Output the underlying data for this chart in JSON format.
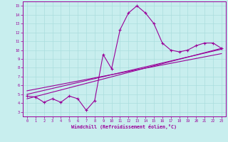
{
  "xlabel": "Windchill (Refroidissement éolien,°C)",
  "bg_color": "#c8eeee",
  "line_color": "#990099",
  "grid_color": "#aadddd",
  "x_ticks": [
    0,
    1,
    2,
    3,
    4,
    5,
    6,
    7,
    8,
    9,
    10,
    11,
    12,
    13,
    14,
    15,
    16,
    17,
    18,
    19,
    20,
    21,
    22,
    23
  ],
  "y_ticks": [
    3,
    4,
    5,
    6,
    7,
    8,
    9,
    10,
    11,
    12,
    13,
    14,
    15
  ],
  "ylim": [
    2.5,
    15.5
  ],
  "xlim": [
    -0.5,
    23.5
  ],
  "curve_x": [
    0,
    1,
    2,
    3,
    4,
    5,
    6,
    7,
    8,
    9,
    10,
    11,
    12,
    13,
    14,
    15,
    16,
    17,
    18,
    19,
    20,
    21,
    22,
    23
  ],
  "curve_y": [
    4.8,
    4.7,
    4.1,
    4.5,
    4.1,
    4.8,
    4.5,
    3.2,
    4.3,
    9.5,
    7.9,
    12.3,
    14.2,
    15.0,
    14.2,
    13.0,
    10.8,
    10.0,
    9.8,
    10.0,
    10.5,
    10.8,
    10.8,
    10.2
  ],
  "line1_x": [
    0,
    23
  ],
  "line1_y": [
    4.5,
    10.2
  ],
  "line2_x": [
    0,
    23
  ],
  "line2_y": [
    5.0,
    10.1
  ],
  "line3_x": [
    0,
    23
  ],
  "line3_y": [
    5.4,
    9.6
  ]
}
